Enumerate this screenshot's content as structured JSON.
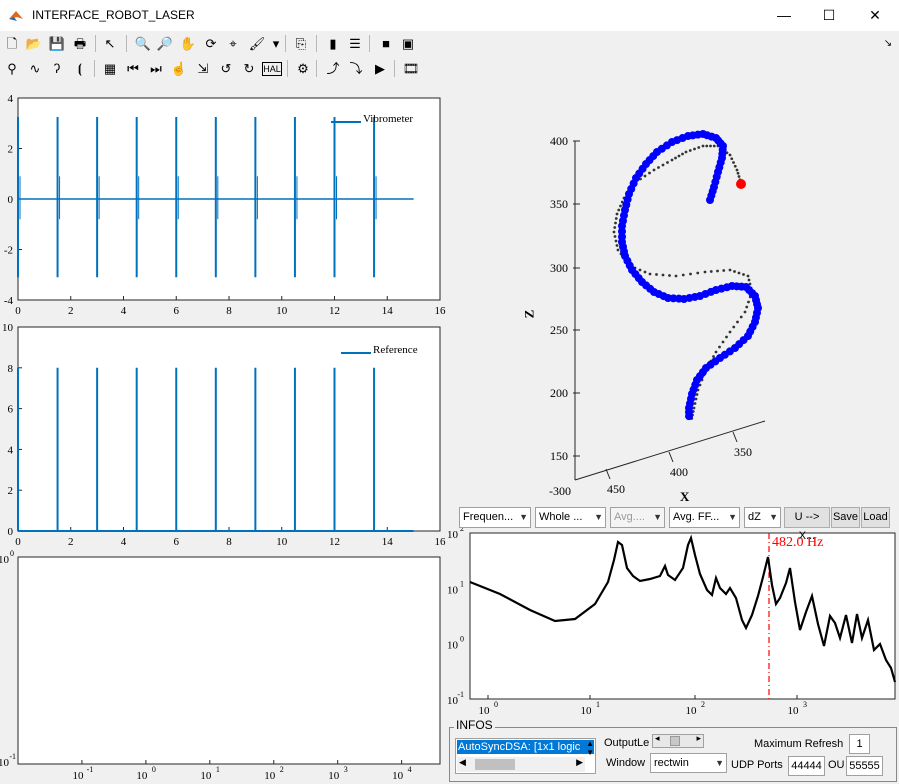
{
  "window": {
    "title": "INTERFACE_ROBOT_LASER",
    "minimize": "—",
    "maximize": "☐",
    "close": "✕"
  },
  "toolbar1": [
    {
      "name": "new-figure-icon",
      "glyph": "🗋"
    },
    {
      "name": "open-file-icon",
      "glyph": "📂"
    },
    {
      "name": "save-icon",
      "glyph": "💾"
    },
    {
      "name": "print-icon",
      "glyph": "🖶"
    },
    {
      "name": "select-arrow-icon",
      "glyph": "↖"
    },
    {
      "name": "zoom-in-icon",
      "glyph": "🔍"
    },
    {
      "name": "zoom-out-icon",
      "glyph": "🔎"
    },
    {
      "name": "pan-hand-icon",
      "glyph": "✋"
    },
    {
      "name": "rotate-3d-icon",
      "glyph": "⟳"
    },
    {
      "name": "data-cursor-icon",
      "glyph": "⌖"
    },
    {
      "name": "brush-icon",
      "glyph": "🖌"
    },
    {
      "name": "brush-dropdown-icon",
      "glyph": "▾"
    },
    {
      "name": "link-plot-icon",
      "glyph": "⎘"
    },
    {
      "name": "colorbar-icon",
      "glyph": "▮"
    },
    {
      "name": "legend-icon",
      "glyph": "☰"
    },
    {
      "name": "hide-plot-tools-icon",
      "glyph": "■"
    },
    {
      "name": "show-plot-tools-icon",
      "glyph": "▣"
    }
  ],
  "toolbar1_expand": "↘",
  "toolbar2": [
    {
      "name": "probe-icon",
      "glyph": "⚲"
    },
    {
      "name": "signal-wave-icon",
      "glyph": "∿"
    },
    {
      "name": "ear-icon",
      "glyph": "ʔ"
    },
    {
      "name": "broadcast-icon",
      "glyph": "⦗"
    },
    {
      "name": "grid-icon",
      "glyph": "▦"
    },
    {
      "name": "skip-back-icon",
      "glyph": "⏮"
    },
    {
      "name": "skip-forward-icon",
      "glyph": "⏭"
    },
    {
      "name": "hand-point-icon",
      "glyph": "☝"
    },
    {
      "name": "pick-arrow-icon",
      "glyph": "⇲"
    },
    {
      "name": "rotate-ccw-icon",
      "glyph": "↺"
    },
    {
      "name": "rotate-cw-icon",
      "glyph": "↻"
    },
    {
      "name": "hal-icon",
      "glyph": "HAL"
    },
    {
      "name": "settings-gear-icon",
      "glyph": "⚙"
    },
    {
      "name": "robot-arm-icon",
      "glyph": "⤴"
    },
    {
      "name": "robot-arm-3d-icon",
      "glyph": "⤵"
    },
    {
      "name": "play-icon",
      "glyph": "▶"
    },
    {
      "name": "film-icon",
      "glyph": "🎞"
    }
  ],
  "plot_vibrometer": {
    "legend": "Vibrometer",
    "yticks": [
      "4",
      "2",
      "0",
      "-2",
      "-4"
    ],
    "xticks": [
      "0",
      "2",
      "4",
      "6",
      "8",
      "10",
      "12",
      "14",
      "16"
    ]
  },
  "plot_reference": {
    "legend": "Reference",
    "yticks": [
      "10",
      "8",
      "6",
      "4",
      "2",
      "0"
    ],
    "xticks": [
      "0",
      "2",
      "4",
      "6",
      "8",
      "10",
      "12",
      "14",
      "16"
    ]
  },
  "plot_empty": {
    "ytop": "10",
    "ybottom": "10",
    "exp_top": "0",
    "exp_bottom": "-1",
    "xbase": [
      "10",
      "10",
      "10",
      "10",
      "10",
      "10"
    ],
    "xexp": [
      "-1",
      "0",
      "1",
      "2",
      "3",
      "4"
    ]
  },
  "plot_3d": {
    "zlabel": "Z",
    "xlabel": "X",
    "zticks": [
      "400",
      "350",
      "300",
      "250",
      "200",
      "150"
    ],
    "xticks": [
      "450",
      "400",
      "350"
    ],
    "ycorner": "-300"
  },
  "controls": {
    "analysis_type": "Frequen...",
    "range": "Whole ...",
    "avg": "Avg....",
    "avg_fft": "Avg. FF...",
    "direction": "dZ",
    "convert": "U --> X...",
    "save": "Save",
    "load": "Load"
  },
  "plot_spectrum": {
    "marker": "482.0 Hz",
    "ybase": [
      "10",
      "10",
      "10",
      "10"
    ],
    "yexp": [
      "2",
      "1",
      "0",
      "-1"
    ],
    "xbase": [
      "10",
      "10",
      "10",
      "10"
    ],
    "xexp": [
      "0",
      "1",
      "2",
      "3"
    ]
  },
  "infos": {
    "title": "INFOS",
    "list_item": "AutoSyncDSA: [1x1 logic",
    "output_label": "OutputLe",
    "max_refresh_label": "Maximum Refresh",
    "max_refresh_value": "1",
    "window_label": "Window",
    "window_value": "rectwin",
    "udp_label": "UDP Ports",
    "udp_in": "44444",
    "udp_out_label": "OU",
    "udp_out": "55555"
  },
  "colors": {
    "series": "#0072bd",
    "marker3d": "#0000ff",
    "endpoint": "#ff0000",
    "spectrum": "#000000",
    "cursor": "#ff0000"
  }
}
